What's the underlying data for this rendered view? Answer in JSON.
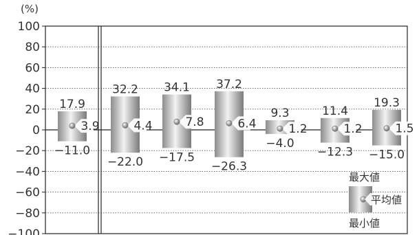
{
  "chart_data": {
    "type": "floating-bar",
    "unit_label": "(%)",
    "ylim": [
      -100,
      100
    ],
    "y_ticks": [
      100,
      80,
      60,
      40,
      20,
      0,
      -20,
      -40,
      -60,
      -80,
      -100
    ],
    "grid": true,
    "series": [
      {
        "max": 17.9,
        "avg": 3.9,
        "min": -11.0,
        "max_label": "17.9",
        "avg_label": "3.9",
        "min_label": "-11.0"
      },
      {
        "max": 32.2,
        "avg": 4.4,
        "min": -22.0,
        "max_label": "32.2",
        "avg_label": "4.4",
        "min_label": "-22.0"
      },
      {
        "max": 34.1,
        "avg": 7.8,
        "min": -17.5,
        "max_label": "34.1",
        "avg_label": "7.8",
        "min_label": "-17.5"
      },
      {
        "max": 37.2,
        "avg": 6.4,
        "min": -26.3,
        "max_label": "37.2",
        "avg_label": "6.4",
        "min_label": "-26.3"
      },
      {
        "max": 9.3,
        "avg": 1.2,
        "min": -4.0,
        "max_label": "9.3",
        "avg_label": "1.2",
        "min_label": "-4.0"
      },
      {
        "max": 11.4,
        "avg": 1.2,
        "min": -12.3,
        "max_label": "11.4",
        "avg_label": "1.2",
        "min_label": "-12.3"
      },
      {
        "max": 19.3,
        "avg": 1.5,
        "min": -15.0,
        "max_label": "19.3",
        "avg_label": "1.5",
        "min_label": "-15.0"
      }
    ],
    "legend": {
      "max_label": "最大値",
      "avg_label": "平均値",
      "min_label": "最小値",
      "placement": "bottom-right"
    }
  }
}
